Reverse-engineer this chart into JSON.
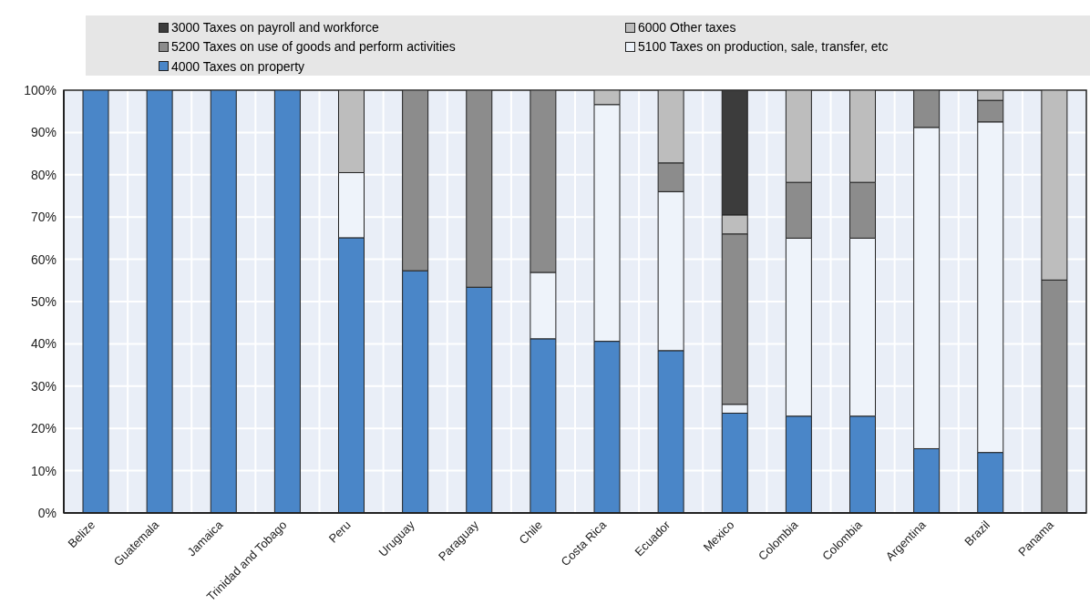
{
  "chart_data": {
    "type": "bar",
    "stacked": true,
    "categories": [
      "Belize",
      "Guatemala",
      "Jamaica",
      "Trinidad and Tobago",
      "Peru",
      "Uruguay",
      "Paraguay",
      "Chile",
      "Costa Rica",
      "Ecuador",
      "Mexico",
      "Colombia",
      "Colombia",
      "Argentina",
      "Brazil",
      "Panama"
    ],
    "series": [
      {
        "name": "4000 Taxes on property",
        "color": "#4a86c8",
        "values": [
          100,
          100,
          100,
          100,
          65.1,
          57.3,
          53.4,
          41.2,
          40.6,
          38.4,
          23.6,
          22.9,
          22.9,
          15.2,
          14.3,
          0
        ]
      },
      {
        "name": "5100 Taxes on production, sale, transfer, etc",
        "color": "#eef3fa",
        "values": [
          0,
          0,
          0,
          0,
          15.4,
          0,
          0,
          15.7,
          56,
          37.6,
          2.1,
          42.1,
          42.1,
          76,
          78.2,
          0
        ]
      },
      {
        "name": "5200 Taxes on use of goods and perform  activities",
        "color": "#8c8c8c",
        "values": [
          0,
          0,
          0,
          0,
          0,
          42.7,
          46.6,
          43.1,
          0,
          6.8,
          40.3,
          13.2,
          13.2,
          8.8,
          5.1,
          55.1
        ]
      },
      {
        "name": "6000 Other taxes",
        "color": "#bdbdbd",
        "values": [
          0,
          0,
          0,
          0,
          19.5,
          0,
          0,
          0,
          3.4,
          17.2,
          4.5,
          21.8,
          21.8,
          0,
          2.4,
          44.9
        ]
      },
      {
        "name": "3000 Taxes on payroll and workforce",
        "color": "#3c3c3c",
        "values": [
          0,
          0,
          0,
          0,
          0,
          0,
          0,
          0,
          0,
          0,
          29.5,
          0,
          0,
          0,
          0,
          0
        ]
      }
    ],
    "ylim": [
      0,
      100
    ],
    "yticks": [
      {
        "value": 0,
        "label": "0%"
      },
      {
        "value": 10,
        "label": "10%"
      },
      {
        "value": 20,
        "label": "20%"
      },
      {
        "value": 30,
        "label": "30%"
      },
      {
        "value": 40,
        "label": "40%"
      },
      {
        "value": 50,
        "label": "50%"
      },
      {
        "value": 60,
        "label": "60%"
      },
      {
        "value": 70,
        "label": "70%"
      },
      {
        "value": 80,
        "label": "80%"
      },
      {
        "value": 90,
        "label": "90%"
      },
      {
        "value": 100,
        "label": "100%"
      }
    ],
    "grid": true,
    "legend": "top"
  }
}
